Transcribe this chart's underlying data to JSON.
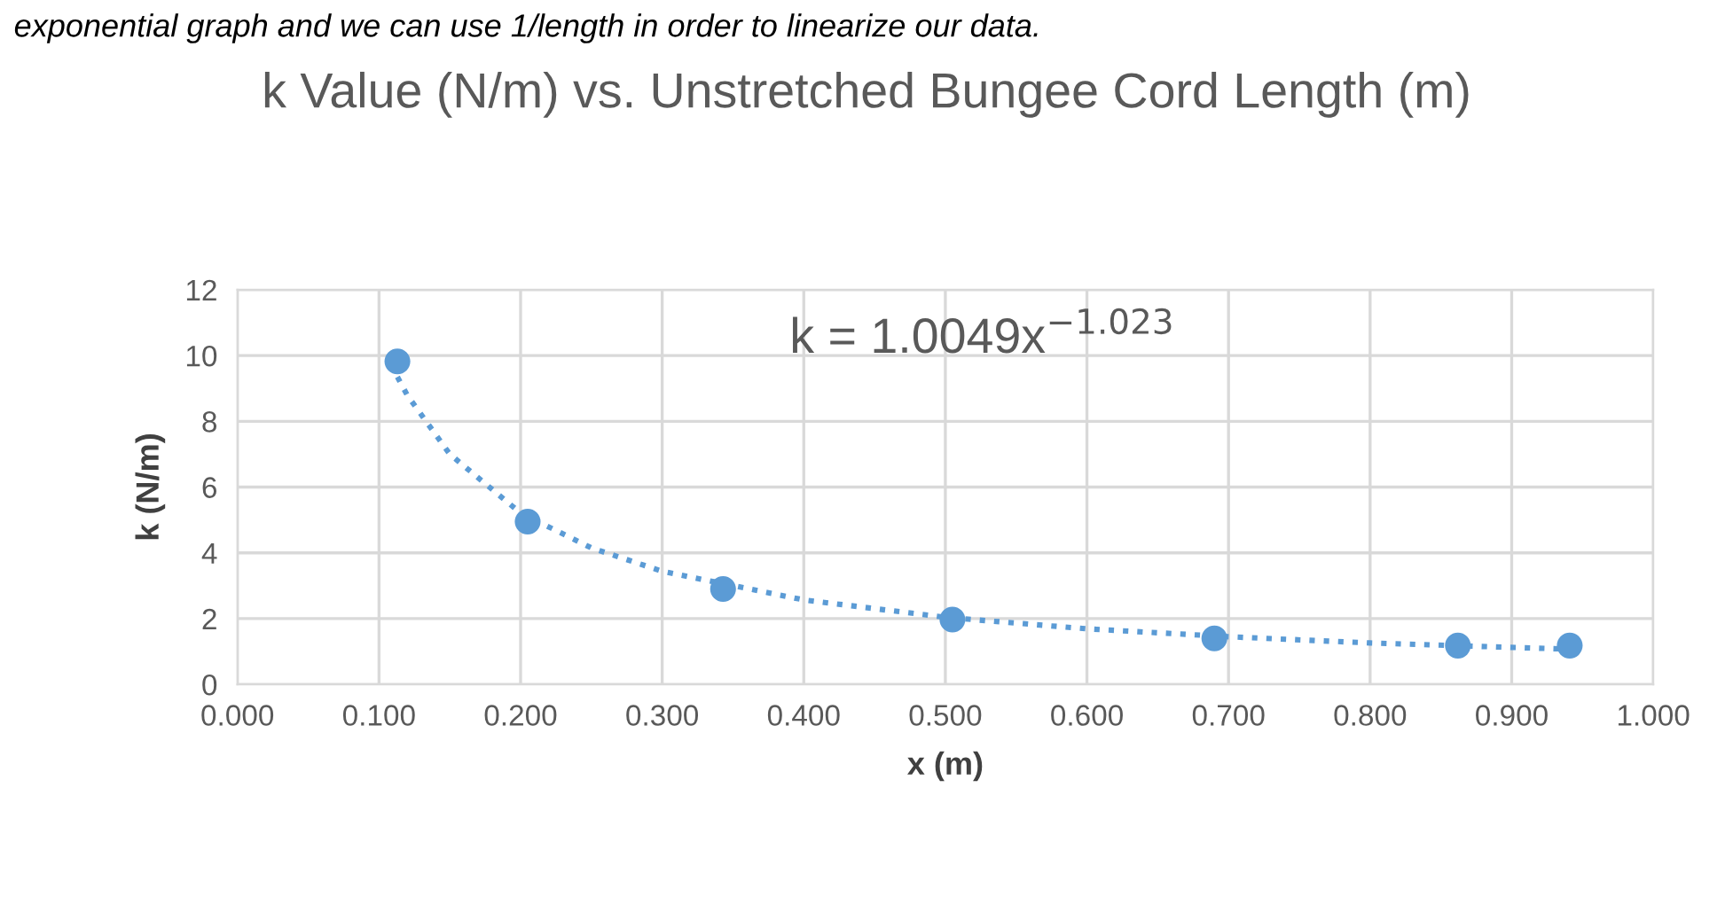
{
  "chart_data": {
    "type": "scatter",
    "title": "k Value (N/m) vs. Unstretched Bungee Cord Length (m)",
    "xlabel": "x (m)",
    "ylabel": "k (N/m)",
    "annotations": [
      "exponential graph and we can use 1/length in order to linearize our data.",
      "k = 1.0049x$^{−1.023}$"
    ],
    "series": [
      {
        "color": "#5b9bd5",
        "marker": "circle",
        "x": [
          0.113,
          0.205,
          0.343,
          0.505,
          0.69,
          0.862,
          0.941
        ],
        "values": [
          9.82,
          4.95,
          2.9,
          1.97,
          1.4,
          1.18,
          1.18
        ]
      },
      {
        "type": "line",
        "color": "#5b9bd5",
        "marker": "none",
        "line_style": "dotted",
        "x": [
          0.113,
          0.12,
          0.15,
          0.2,
          0.25,
          0.3,
          0.4,
          0.5,
          0.6,
          0.7,
          0.8,
          0.941
        ],
        "values": [
          9.35,
          8.79,
          7.0,
          5.21,
          4.15,
          3.44,
          2.57,
          2.04,
          1.69,
          1.45,
          1.26,
          1.07
        ]
      }
    ],
    "xlim": [
      0,
      1
    ],
    "xticks": [
      {
        "value": 0,
        "label": "0.000"
      },
      {
        "value": 0.1,
        "label": "0.100"
      },
      {
        "value": 0.2,
        "label": "0.200"
      },
      {
        "value": 0.3,
        "label": "0.300"
      },
      {
        "value": 0.4,
        "label": "0.400"
      },
      {
        "value": 0.5,
        "label": "0.500"
      },
      {
        "value": 0.6,
        "label": "0.600"
      },
      {
        "value": 0.7,
        "label": "0.700"
      },
      {
        "value": 0.8,
        "label": "0.800"
      },
      {
        "value": 0.9,
        "label": "0.900"
      },
      {
        "value": 1,
        "label": "1.000"
      }
    ],
    "ylim": [
      0,
      12
    ],
    "yticks": [
      0,
      2,
      4,
      6,
      8,
      10,
      12
    ],
    "grid": true,
    "legend": false
  }
}
